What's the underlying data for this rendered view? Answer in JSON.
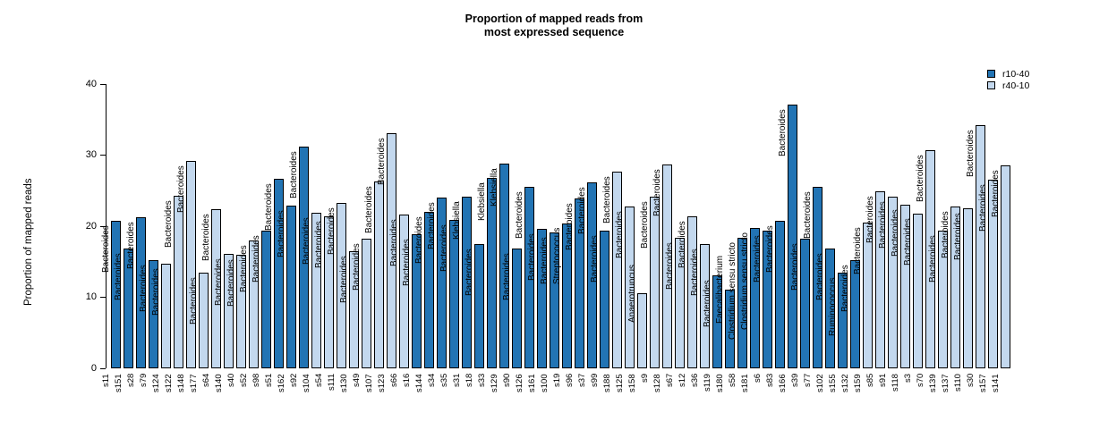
{
  "title": "Proportion of mapped reads from\nmost expressed sequence",
  "y_axis": {
    "label": "Proportion of mapped reads",
    "ticks": [
      0,
      10,
      20,
      30,
      40
    ],
    "ylim": [
      0,
      40
    ]
  },
  "legend": {
    "position": "top-right",
    "entries": [
      {
        "label": "r10-40",
        "color": "#2274b4"
      },
      {
        "label": "r40-10",
        "color": "#c3d8ee"
      }
    ]
  },
  "chart_data": {
    "type": "bar",
    "title": "Proportion of mapped reads from most expressed sequence",
    "xlabel": "",
    "ylabel": "Proportion of mapped reads",
    "ylim": [
      0,
      40
    ],
    "grid": false,
    "series_colors": {
      "r10-40": "#2274b4",
      "r40-10": "#c3d8ee"
    },
    "bars": [
      {
        "sample": "s11",
        "genus": "Bacteroides",
        "group": "r10-40",
        "value": 20.7
      },
      {
        "sample": "s151",
        "genus": "Bacteroides",
        "group": "r10-40",
        "value": 16.8
      },
      {
        "sample": "s28",
        "genus": "Bacteroides",
        "group": "r10-40",
        "value": 21.2
      },
      {
        "sample": "s79",
        "genus": "Bacteroides",
        "group": "r10-40",
        "value": 15.2
      },
      {
        "sample": "s124",
        "genus": "Bacteroides",
        "group": "r40-10",
        "value": 14.7
      },
      {
        "sample": "s122",
        "genus": "Bacteroides",
        "group": "r40-10",
        "value": 24.2
      },
      {
        "sample": "s148",
        "genus": "Bacteroides",
        "group": "r40-10",
        "value": 29.1
      },
      {
        "sample": "s177",
        "genus": "Bacteroides",
        "group": "r40-10",
        "value": 13.5
      },
      {
        "sample": "s64",
        "genus": "Bacteroides",
        "group": "r40-10",
        "value": 22.3
      },
      {
        "sample": "s140",
        "genus": "Bacteroides",
        "group": "r40-10",
        "value": 16.1
      },
      {
        "sample": "s40",
        "genus": "Bacteroides",
        "group": "r40-10",
        "value": 16.0
      },
      {
        "sample": "s52",
        "genus": "Bacteroides",
        "group": "r40-10",
        "value": 18.0
      },
      {
        "sample": "s98",
        "genus": "Bacteroides",
        "group": "r10-40",
        "value": 19.4
      },
      {
        "sample": "s51",
        "genus": "Bacteroides",
        "group": "r10-40",
        "value": 26.6
      },
      {
        "sample": "s162",
        "genus": "Bacteroides",
        "group": "r10-40",
        "value": 22.9
      },
      {
        "sample": "s92",
        "genus": "Bacteroides",
        "group": "r10-40",
        "value": 31.2
      },
      {
        "sample": "s104",
        "genus": "Bacteroides",
        "group": "r40-10",
        "value": 21.9
      },
      {
        "sample": "s54",
        "genus": "Bacteroides",
        "group": "r40-10",
        "value": 21.4
      },
      {
        "sample": "s111",
        "genus": "Bacteroides",
        "group": "r40-10",
        "value": 23.3
      },
      {
        "sample": "s130",
        "genus": "Bacteroides",
        "group": "r40-10",
        "value": 16.4
      },
      {
        "sample": "s49",
        "genus": "Bacteroides",
        "group": "r40-10",
        "value": 18.2
      },
      {
        "sample": "s107",
        "genus": "Bacteroides",
        "group": "r40-10",
        "value": 26.3
      },
      {
        "sample": "s123",
        "genus": "Bacteroides",
        "group": "r40-10",
        "value": 33.1
      },
      {
        "sample": "s66",
        "genus": "Bacteroides",
        "group": "r40-10",
        "value": 21.6
      },
      {
        "sample": "s16",
        "genus": "Bacteroides",
        "group": "r10-40",
        "value": 18.8
      },
      {
        "sample": "s144",
        "genus": "Bacteroides",
        "group": "r10-40",
        "value": 22.0
      },
      {
        "sample": "s34",
        "genus": "Bacteroides",
        "group": "r10-40",
        "value": 24.0
      },
      {
        "sample": "s35",
        "genus": "Bacteroides",
        "group": "r10-40",
        "value": 20.9
      },
      {
        "sample": "s31",
        "genus": "Klebsiella",
        "group": "r10-40",
        "value": 24.1
      },
      {
        "sample": "s18",
        "genus": "Bacteroides",
        "group": "r10-40",
        "value": 17.4
      },
      {
        "sample": "s33",
        "genus": "Klebsiella",
        "group": "r10-40",
        "value": 26.8
      },
      {
        "sample": "s129",
        "genus": "Klebsiella",
        "group": "r10-40",
        "value": 28.8
      },
      {
        "sample": "s90",
        "genus": "Bacteroides",
        "group": "r10-40",
        "value": 16.8
      },
      {
        "sample": "s126",
        "genus": "Bacteroides",
        "group": "r10-40",
        "value": 25.5
      },
      {
        "sample": "s161",
        "genus": "Bacteroides",
        "group": "r10-40",
        "value": 19.6
      },
      {
        "sample": "s100",
        "genus": "Bacteroides",
        "group": "r10-40",
        "value": 19.1
      },
      {
        "sample": "s19",
        "genus": "Streptococcus",
        "group": "r10-40",
        "value": 20.3
      },
      {
        "sample": "s96",
        "genus": "Bacteroides",
        "group": "r10-40",
        "value": 23.9
      },
      {
        "sample": "s37",
        "genus": "Bacteroides",
        "group": "r10-40",
        "value": 26.1
      },
      {
        "sample": "s99",
        "genus": "Bacteroides",
        "group": "r10-40",
        "value": 19.3
      },
      {
        "sample": "s188",
        "genus": "Bacteroides",
        "group": "r40-10",
        "value": 27.6
      },
      {
        "sample": "s125",
        "genus": "Bacteroides",
        "group": "r40-10",
        "value": 22.7
      },
      {
        "sample": "s158",
        "genus": "Anaerotruncus",
        "group": "r40-10",
        "value": 10.5
      },
      {
        "sample": "s9",
        "genus": "Bacteroides",
        "group": "r40-10",
        "value": 24.1
      },
      {
        "sample": "s128",
        "genus": "Bacteroides",
        "group": "r40-10",
        "value": 28.7
      },
      {
        "sample": "s67",
        "genus": "Bacteroides",
        "group": "r40-10",
        "value": 18.4
      },
      {
        "sample": "s12",
        "genus": "Bacteroides",
        "group": "r40-10",
        "value": 21.4
      },
      {
        "sample": "s36",
        "genus": "Bacteroides",
        "group": "r40-10",
        "value": 17.5
      },
      {
        "sample": "s119",
        "genus": "Bacteroides",
        "group": "r10-40",
        "value": 13.1
      },
      {
        "sample": "s180",
        "genus": "Faecalibacterium",
        "group": "r10-40",
        "value": 11.1
      },
      {
        "sample": "s58",
        "genus": "Clostridium sensu stricto",
        "group": "r10-40",
        "value": 18.4
      },
      {
        "sample": "s181",
        "genus": "Clostridium sensu stricto",
        "group": "r10-40",
        "value": 19.7
      },
      {
        "sample": "s6",
        "genus": "Bacteroides",
        "group": "r10-40",
        "value": 19.3
      },
      {
        "sample": "s83",
        "genus": "Bacteroides",
        "group": "r10-40",
        "value": 20.7
      },
      {
        "sample": "s166",
        "genus": "Bacteroides",
        "group": "r10-40",
        "value": 37.0
      },
      {
        "sample": "s39",
        "genus": "Bacteroides",
        "group": "r10-40",
        "value": 18.2
      },
      {
        "sample": "s77",
        "genus": "Bacteroides",
        "group": "r10-40",
        "value": 25.5
      },
      {
        "sample": "s102",
        "genus": "Bacteroides",
        "group": "r10-40",
        "value": 16.8
      },
      {
        "sample": "s155",
        "genus": "Ruminococcus",
        "group": "r10-40",
        "value": 13.5
      },
      {
        "sample": "s132",
        "genus": "Bacteroides",
        "group": "r10-40",
        "value": 15.2
      },
      {
        "sample": "s159",
        "genus": "Bacteroides",
        "group": "r40-10",
        "value": 20.5
      },
      {
        "sample": "s85",
        "genus": "Bacteroides",
        "group": "r40-10",
        "value": 24.9
      },
      {
        "sample": "s91",
        "genus": "Bacteroides",
        "group": "r40-10",
        "value": 24.1
      },
      {
        "sample": "s118",
        "genus": "Bacteroides",
        "group": "r40-10",
        "value": 23.0
      },
      {
        "sample": "s3",
        "genus": "Bacteroides",
        "group": "r40-10",
        "value": 21.7
      },
      {
        "sample": "s70",
        "genus": "Bacteroides",
        "group": "r40-10",
        "value": 30.7
      },
      {
        "sample": "s139",
        "genus": "Bacteroides",
        "group": "r40-10",
        "value": 19.3
      },
      {
        "sample": "s137",
        "genus": "Bacteroides",
        "group": "r40-10",
        "value": 22.8
      },
      {
        "sample": "s110",
        "genus": "Bacteroides",
        "group": "r40-10",
        "value": 22.5
      },
      {
        "sample": "s30",
        "genus": "Bacteroides",
        "group": "r40-10",
        "value": 34.2
      },
      {
        "sample": "s157",
        "genus": "Bacteroides",
        "group": "r40-10",
        "value": 26.5
      },
      {
        "sample": "s141",
        "genus": "Bacteroides",
        "group": "r40-10",
        "value": 28.5
      }
    ]
  }
}
